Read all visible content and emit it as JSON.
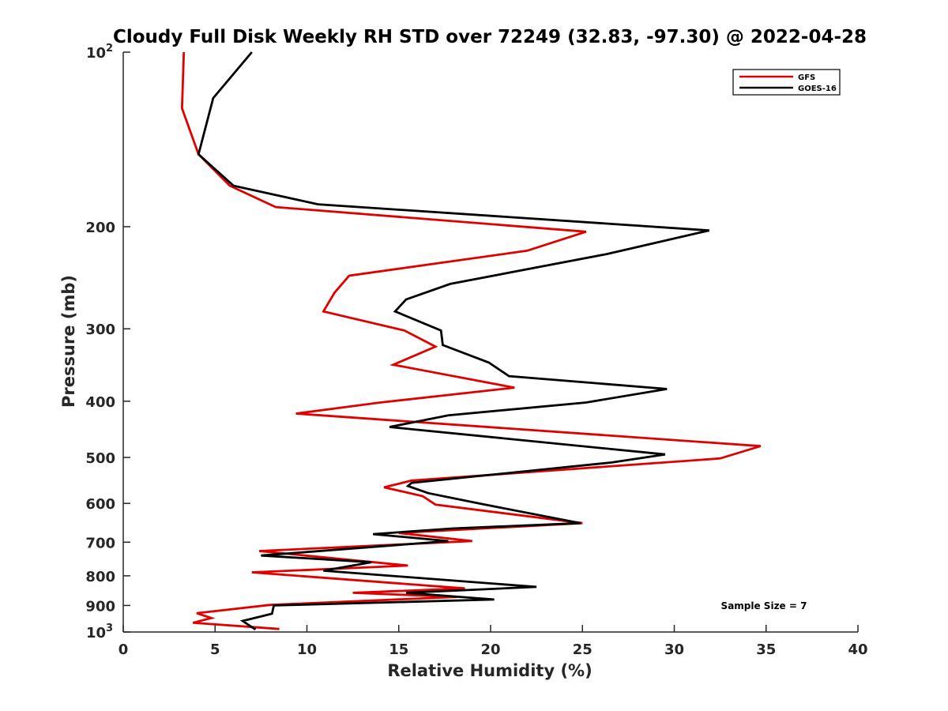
{
  "chart_data": {
    "type": "line",
    "title": "Cloudy Full Disk Weekly RH STD over 72249 (32.83, -97.30) @ 2022-04-28",
    "xlabel": "Relative Humidity (%)",
    "ylabel": "Pressure (mb)",
    "xlim": [
      0,
      40
    ],
    "ylim": [
      100,
      1000
    ],
    "y_scale": "log",
    "y_reversed": true,
    "x_ticks": [
      "0",
      "5",
      "10",
      "15",
      "20",
      "25",
      "30",
      "35",
      "40"
    ],
    "y_ticks": [
      {
        "value": 100,
        "label": "10",
        "sup": "2"
      },
      {
        "value": 200,
        "label": "200"
      },
      {
        "value": 300,
        "label": "300"
      },
      {
        "value": 400,
        "label": "400"
      },
      {
        "value": 500,
        "label": "500"
      },
      {
        "value": 600,
        "label": "600"
      },
      {
        "value": 700,
        "label": "700"
      },
      {
        "value": 800,
        "label": "800"
      },
      {
        "value": 900,
        "label": "900"
      },
      {
        "value": 1000,
        "label": "10",
        "sup": "3"
      }
    ],
    "grid": false,
    "legend_position": "top-right",
    "annotation": "Sample Size = 7",
    "series": [
      {
        "name": "GFS",
        "color": "#e00000",
        "points": [
          [
            3.3,
            100
          ],
          [
            3.2,
            125
          ],
          [
            4.1,
            150
          ],
          [
            5.8,
            170
          ],
          [
            8.3,
            185
          ],
          [
            25.2,
            204
          ],
          [
            22.0,
            220
          ],
          [
            12.3,
            243
          ],
          [
            11.5,
            260
          ],
          [
            10.9,
            280
          ],
          [
            15.3,
            302
          ],
          [
            17.0,
            322
          ],
          [
            14.7,
            346
          ],
          [
            21.3,
            379
          ],
          [
            14.0,
            402
          ],
          [
            9.4,
            420
          ],
          [
            34.7,
            478
          ],
          [
            32.5,
            502
          ],
          [
            15.7,
            548
          ],
          [
            14.2,
            563
          ],
          [
            16.3,
            583
          ],
          [
            17.0,
            603
          ],
          [
            25.0,
            649
          ],
          [
            15.0,
            675
          ],
          [
            19.0,
            697
          ],
          [
            7.4,
            725
          ],
          [
            15.5,
            768
          ],
          [
            7.0,
            789
          ],
          [
            18.6,
            841
          ],
          [
            12.5,
            856
          ],
          [
            18.2,
            870
          ],
          [
            8.0,
            898
          ],
          [
            4.0,
            928
          ],
          [
            4.8,
            946
          ],
          [
            3.8,
            964
          ],
          [
            8.5,
            988
          ]
        ]
      },
      {
        "name": "GOES-16",
        "color": "#000000",
        "points": [
          [
            7.0,
            100
          ],
          [
            4.9,
            120
          ],
          [
            4.1,
            150
          ],
          [
            6.0,
            170
          ],
          [
            10.6,
            183
          ],
          [
            31.9,
            203
          ],
          [
            26.3,
            223
          ],
          [
            17.8,
            251
          ],
          [
            15.4,
            267
          ],
          [
            14.8,
            280
          ],
          [
            17.3,
            302
          ],
          [
            17.4,
            320
          ],
          [
            19.9,
            343
          ],
          [
            21.0,
            362
          ],
          [
            29.6,
            381
          ],
          [
            25.2,
            402
          ],
          [
            17.7,
            423
          ],
          [
            14.5,
            443
          ],
          [
            29.5,
            494
          ],
          [
            26.6,
            510
          ],
          [
            15.7,
            553
          ],
          [
            15.5,
            560
          ],
          [
            16.6,
            576
          ],
          [
            19.7,
            603
          ],
          [
            24.9,
            649
          ],
          [
            17.9,
            663
          ],
          [
            13.6,
            678
          ],
          [
            17.7,
            697
          ],
          [
            7.5,
            738
          ],
          [
            13.5,
            758
          ],
          [
            10.9,
            784
          ],
          [
            22.5,
            836
          ],
          [
            15.4,
            856
          ],
          [
            20.2,
            879
          ],
          [
            8.2,
            900
          ],
          [
            8.1,
            930
          ],
          [
            6.5,
            957
          ],
          [
            7.2,
            990
          ]
        ]
      }
    ]
  }
}
